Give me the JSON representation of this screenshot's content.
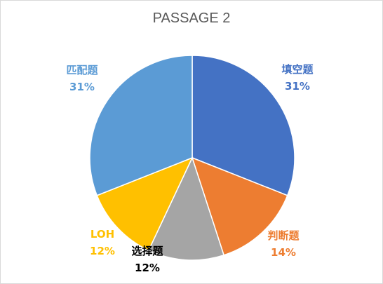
{
  "chart_data": {
    "type": "pie",
    "title": "PASSAGE 2",
    "categories": [
      "填空题",
      "判断题",
      "选择题",
      "LOH",
      "匹配题"
    ],
    "values": [
      31,
      14,
      12,
      12,
      31
    ],
    "value_labels": [
      "31%",
      "14%",
      "12%",
      "12%",
      "31%"
    ],
    "colors": [
      "#4472c4",
      "#ed7d31",
      "#a5a5a5",
      "#ffc000",
      "#5b9bd5"
    ],
    "label_colors": [
      "#4472c4",
      "#ed7d31",
      "#000000",
      "#ffc000",
      "#5b9bd5"
    ],
    "legend": "none"
  }
}
